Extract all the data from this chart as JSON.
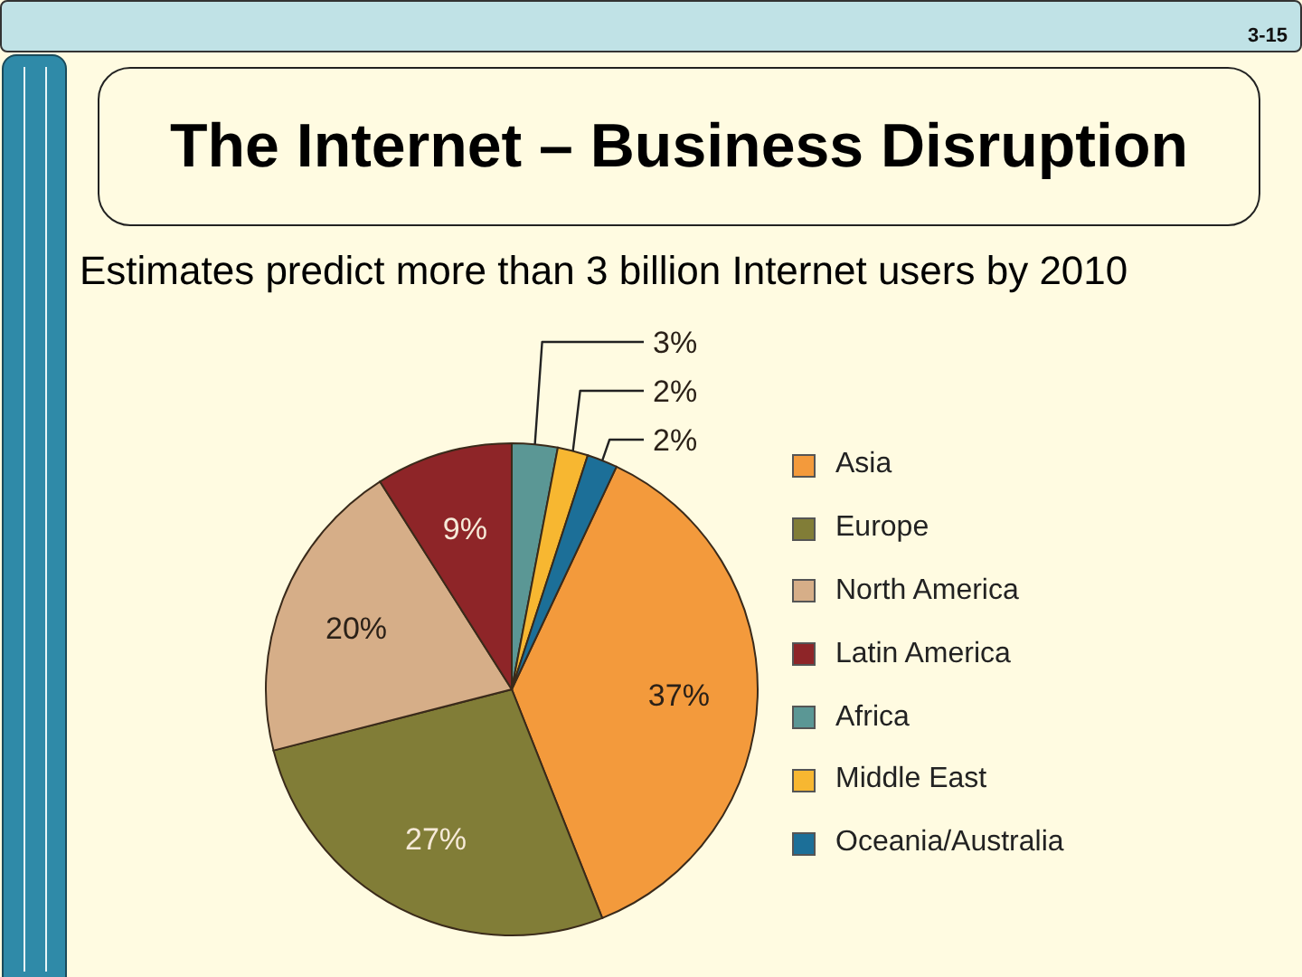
{
  "chart_data": {
    "type": "pie",
    "title": "The Internet – Business Disruption",
    "subtitle": "Estimates predict more than 3 billion Internet users by 2010",
    "annotations": [
      "3-15"
    ],
    "categories": [
      "Asia",
      "Europe",
      "North America",
      "Latin America",
      "Africa",
      "Middle East",
      "Oceania/Australia"
    ],
    "values": [
      37,
      27,
      20,
      9,
      3,
      2,
      2
    ],
    "colors": [
      "#f39a3c",
      "#817d37",
      "#d6ae88",
      "#8e2528",
      "#5b9795",
      "#f7b731",
      "#1c6f98"
    ],
    "value_labels": [
      "37%",
      "27%",
      "20%",
      "9%",
      "3%",
      "2%",
      "2%"
    ],
    "legend": "right"
  }
}
